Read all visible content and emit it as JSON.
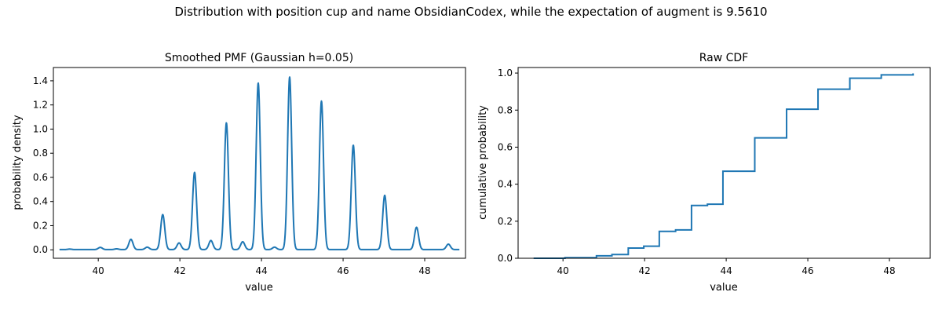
{
  "suptitle": "Distribution with position cup and name ObsidianCodex, while the expectation of augment is 9.5610",
  "line_color": "#1f77b4",
  "chart_data": [
    {
      "type": "line",
      "title": "Smoothed PMF (Gaussian h=0.05)",
      "xlabel": "value",
      "ylabel": "probability density",
      "xlim": [
        38.9,
        49.0
      ],
      "ylim": [
        -0.07,
        1.51
      ],
      "xticks": [
        40,
        42,
        44,
        46,
        48
      ],
      "yticks": [
        0.0,
        0.2,
        0.4,
        0.6,
        0.8,
        1.0,
        1.2,
        1.4
      ],
      "x_range": [
        39.05,
        48.85
      ],
      "bandwidth": 0.05,
      "baseline": 0.002,
      "peaks": [
        {
          "x": 39.3,
          "height": 0.004
        },
        {
          "x": 40.05,
          "height": 0.018
        },
        {
          "x": 40.45,
          "height": 0.006
        },
        {
          "x": 40.8,
          "height": 0.085
        },
        {
          "x": 41.2,
          "height": 0.02
        },
        {
          "x": 41.58,
          "height": 0.29
        },
        {
          "x": 41.98,
          "height": 0.055
        },
        {
          "x": 42.36,
          "height": 0.64
        },
        {
          "x": 42.76,
          "height": 0.075
        },
        {
          "x": 43.14,
          "height": 1.05
        },
        {
          "x": 43.54,
          "height": 0.065
        },
        {
          "x": 43.92,
          "height": 1.38
        },
        {
          "x": 44.32,
          "height": 0.02
        },
        {
          "x": 44.69,
          "height": 1.43
        },
        {
          "x": 45.47,
          "height": 1.23
        },
        {
          "x": 46.25,
          "height": 0.865
        },
        {
          "x": 47.02,
          "height": 0.45
        },
        {
          "x": 47.8,
          "height": 0.185
        },
        {
          "x": 48.58,
          "height": 0.045
        }
      ]
    },
    {
      "type": "line",
      "title": "Raw CDF",
      "xlabel": "value",
      "ylabel": "cumulative probability",
      "xlim": [
        38.9,
        49.0
      ],
      "ylim": [
        0.0,
        1.03
      ],
      "xticks": [
        40,
        42,
        44,
        46,
        48
      ],
      "yticks": [
        0.0,
        0.2,
        0.4,
        0.6,
        0.8,
        1.0
      ],
      "x": [
        39.28,
        40.05,
        40.82,
        41.2,
        41.6,
        41.98,
        42.36,
        42.76,
        43.15,
        43.54,
        43.92,
        44.7,
        45.48,
        46.25,
        47.03,
        47.8,
        48.58
      ],
      "y": [
        0.0,
        0.003,
        0.013,
        0.02,
        0.055,
        0.065,
        0.145,
        0.153,
        0.285,
        0.292,
        0.47,
        0.65,
        0.805,
        0.913,
        0.972,
        0.99,
        0.998
      ]
    }
  ]
}
